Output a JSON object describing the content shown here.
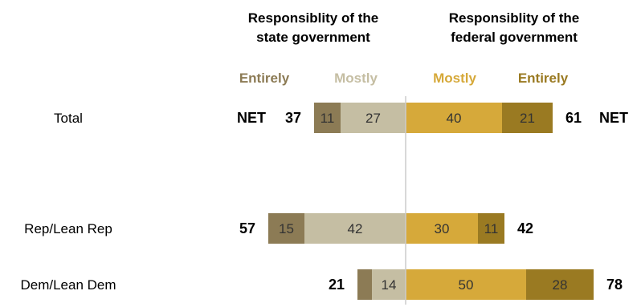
{
  "chart_data": {
    "type": "bar",
    "orientation": "horizontal-diverging",
    "headers": {
      "left": [
        "Responsiblity of the",
        "state government"
      ],
      "right": [
        "Responsiblity of the",
        "federal government"
      ]
    },
    "legend": [
      {
        "key": "state_entirely",
        "label": "Entirely",
        "color": "#8c7b55"
      },
      {
        "key": "state_mostly",
        "label": "Mostly",
        "color": "#c5bea3"
      },
      {
        "key": "federal_mostly",
        "label": "Mostly",
        "color": "#d6a93a"
      },
      {
        "key": "federal_entirely",
        "label": "Entirely",
        "color": "#9a7a22"
      }
    ],
    "net_label": "NET",
    "categories": [
      "Total",
      "Rep/Lean Rep",
      "Dem/Lean Dem"
    ],
    "series": [
      {
        "name": "Entirely",
        "side": "state",
        "values": [
          11,
          15,
          6
        ]
      },
      {
        "name": "Mostly",
        "side": "state",
        "values": [
          27,
          42,
          14
        ]
      },
      {
        "name": "Mostly",
        "side": "federal",
        "values": [
          40,
          30,
          50
        ]
      },
      {
        "name": "Entirely",
        "side": "federal",
        "values": [
          21,
          11,
          28
        ]
      }
    ],
    "segment_labels": {
      "state_entirely": [
        "11",
        "15",
        ""
      ],
      "state_mostly": [
        "27",
        "42",
        "14"
      ],
      "federal_mostly": [
        "40",
        "30",
        "50"
      ],
      "federal_entirely": [
        "21",
        "11",
        "28"
      ]
    },
    "net_state": [
      "37",
      "57",
      "21"
    ],
    "net_federal": [
      "61",
      "42",
      "78"
    ]
  }
}
